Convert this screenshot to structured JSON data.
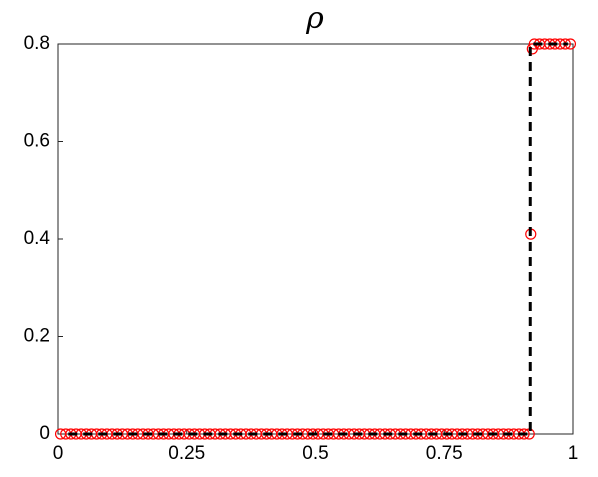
{
  "chart_data": {
    "type": "line",
    "title": "ρ",
    "xlim": [
      0,
      1
    ],
    "ylim": [
      0,
      0.8
    ],
    "xticks": [
      0,
      {
        "value": 0.25,
        "label": "0.25"
      },
      0.5,
      {
        "value": 0.75,
        "label": "0.75"
      },
      1
    ],
    "yticks": [
      0,
      0.2,
      0.4,
      0.6,
      0.8
    ],
    "series": [
      {
        "type": "scatter",
        "color": "#ff0000",
        "x": [
          0.005,
          0.015,
          0.025,
          0.035,
          0.045,
          0.055,
          0.065,
          0.075,
          0.085,
          0.095,
          0.105,
          0.115,
          0.125,
          0.135,
          0.145,
          0.155,
          0.165,
          0.175,
          0.185,
          0.195,
          0.205,
          0.215,
          0.225,
          0.235,
          0.245,
          0.255,
          0.265,
          0.275,
          0.285,
          0.295,
          0.305,
          0.315,
          0.325,
          0.335,
          0.345,
          0.355,
          0.365,
          0.375,
          0.385,
          0.395,
          0.405,
          0.415,
          0.425,
          0.435,
          0.445,
          0.455,
          0.465,
          0.475,
          0.485,
          0.495,
          0.505,
          0.515,
          0.525,
          0.535,
          0.545,
          0.555,
          0.565,
          0.575,
          0.585,
          0.595,
          0.605,
          0.615,
          0.625,
          0.635,
          0.645,
          0.655,
          0.665,
          0.675,
          0.685,
          0.695,
          0.705,
          0.715,
          0.725,
          0.735,
          0.745,
          0.755,
          0.765,
          0.775,
          0.785,
          0.795,
          0.805,
          0.815,
          0.825,
          0.835,
          0.845,
          0.855,
          0.865,
          0.875,
          0.885,
          0.895,
          0.905,
          0.915,
          0.918,
          0.921,
          0.925,
          0.935,
          0.945,
          0.955,
          0.965,
          0.975,
          0.985,
          0.995
        ],
        "values": [
          0,
          0,
          0,
          0,
          0,
          0,
          0,
          0,
          0,
          0,
          0,
          0,
          0,
          0,
          0,
          0,
          0,
          0,
          0,
          0,
          0,
          0,
          0,
          0,
          0,
          0,
          0,
          0,
          0,
          0,
          0,
          0,
          0,
          0,
          0,
          0,
          0,
          0,
          0,
          0,
          0,
          0,
          0,
          0,
          0,
          0,
          0,
          0,
          0,
          0,
          0,
          0,
          0,
          0,
          0,
          0,
          0,
          0,
          0,
          0,
          0,
          0,
          0,
          0,
          0,
          0,
          0,
          0,
          0,
          0,
          0,
          0,
          0,
          0,
          0,
          0,
          0,
          0,
          0,
          0,
          0,
          0,
          0,
          0,
          0,
          0,
          0,
          0,
          0,
          0,
          0,
          0,
          0.41,
          0.79,
          0.8,
          0.8,
          0.8,
          0.8,
          0.8,
          0.8,
          0.8,
          0.8
        ]
      },
      {
        "type": "line",
        "color": "#000000",
        "style": "dashed",
        "x": [
          0.02,
          0.917,
          0.917,
          0.99
        ],
        "values": [
          0,
          0,
          0.8,
          0.8
        ]
      }
    ]
  }
}
